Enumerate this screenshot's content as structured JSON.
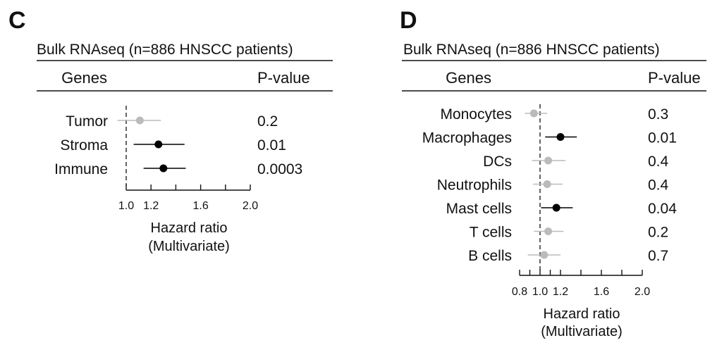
{
  "chart_data": [
    {
      "type": "forest",
      "panel_label": "C",
      "title": "Bulk RNAseq (n=886 HNSCC patients)",
      "col_genes": "Genes",
      "col_p": "P-value",
      "xlabel": "Hazard ratio",
      "xlabel2": "(Multivariate)",
      "xlim": [
        1.0,
        2.0
      ],
      "ticks": [
        "1.0",
        "1.2",
        "1.6",
        "2.0"
      ],
      "tick_values": [
        1.0,
        1.2,
        1.6,
        2.0
      ],
      "minor_ticks": [
        1.4,
        1.8
      ],
      "ref_line": 1.0,
      "colors": {
        "significant": "#000000",
        "nonsignificant": "#bbbbbb"
      },
      "rows": [
        {
          "label": "Tumor",
          "hr": 1.11,
          "ci": [
            0.93,
            1.28
          ],
          "p": "0.2",
          "significant": false
        },
        {
          "label": "Stroma",
          "hr": 1.26,
          "ci": [
            1.06,
            1.47
          ],
          "p": "0.01",
          "significant": true
        },
        {
          "label": "Immune",
          "hr": 1.3,
          "ci": [
            1.14,
            1.48
          ],
          "p": "0.0003",
          "significant": true
        }
      ]
    },
    {
      "type": "forest",
      "panel_label": "D",
      "title": "Bulk RNAseq (n=886 HNSCC patients)",
      "col_genes": "Genes",
      "col_p": "P-value",
      "xlabel": "Hazard ratio",
      "xlabel2": "(Multivariate)",
      "xlim": [
        0.8,
        2.0
      ],
      "ticks": [
        "0.8",
        "1.0",
        "1.2",
        "1.6",
        "2.0"
      ],
      "tick_values": [
        0.8,
        1.0,
        1.2,
        1.6,
        2.0
      ],
      "minor_ticks": [
        0.9,
        1.1,
        1.4,
        1.8
      ],
      "ref_line": 1.0,
      "colors": {
        "significant": "#000000",
        "nonsignificant": "#bbbbbb"
      },
      "rows": [
        {
          "label": "Monocytes",
          "hr": 0.94,
          "ci": [
            0.85,
            1.07
          ],
          "p": "0.3",
          "significant": false
        },
        {
          "label": "Macrophages",
          "hr": 1.2,
          "ci": [
            1.05,
            1.36
          ],
          "p": "0.01",
          "significant": true
        },
        {
          "label": "DCs",
          "hr": 1.08,
          "ci": [
            0.92,
            1.25
          ],
          "p": "0.4",
          "significant": false
        },
        {
          "label": "Neutrophils",
          "hr": 1.07,
          "ci": [
            0.93,
            1.22
          ],
          "p": "0.4",
          "significant": false
        },
        {
          "label": "Mast cells",
          "hr": 1.16,
          "ci": [
            1.01,
            1.32
          ],
          "p": "0.04",
          "significant": true
        },
        {
          "label": "T cells",
          "hr": 1.08,
          "ci": [
            0.94,
            1.23
          ],
          "p": "0.2",
          "significant": false
        },
        {
          "label": "B cells",
          "hr": 1.04,
          "ci": [
            0.88,
            1.2
          ],
          "p": "0.7",
          "significant": false
        }
      ]
    }
  ]
}
